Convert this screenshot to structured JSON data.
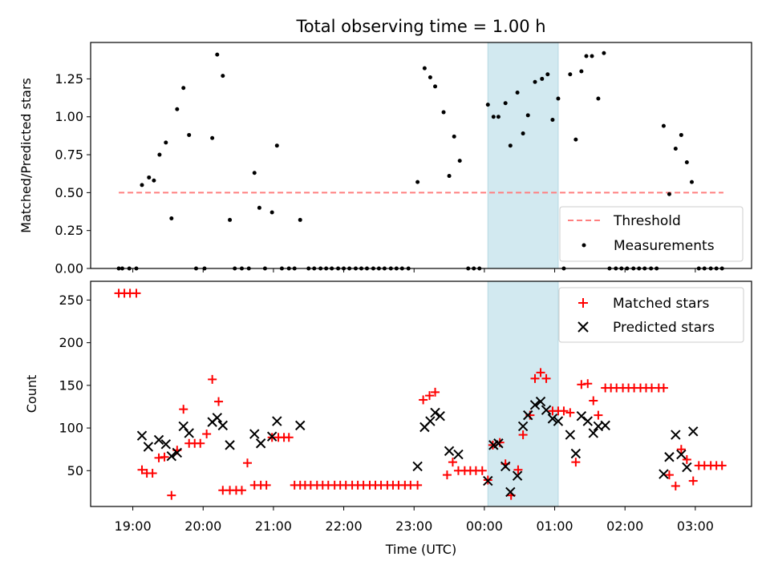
{
  "chart_data": [
    {
      "type": "scatter",
      "title": "Total observing time = 1.00 h",
      "xlabel": "",
      "ylabel": "Matched/Predicted stars",
      "x_tick_labels": [
        "19:00",
        "20:00",
        "21:00",
        "22:00",
        "23:00",
        "00:00",
        "01:00",
        "02:00",
        "03:00"
      ],
      "xlim_hours": [
        18.4,
        27.8
      ],
      "ylim": [
        0,
        1.49
      ],
      "y_ticks": [
        0.0,
        0.25,
        0.5,
        0.75,
        1.0,
        1.25
      ],
      "y_tick_labels": [
        "0.00",
        "0.25",
        "0.50",
        "0.75",
        "1.00",
        "1.25"
      ],
      "highlight_span_hours": [
        24.05,
        25.05
      ],
      "highlight_color": "#d2e9f0",
      "grid": false,
      "legend": {
        "position": "lower-right",
        "entries": [
          "Threshold",
          "Measurements"
        ]
      },
      "threshold": {
        "name": "Threshold",
        "value": 0.5,
        "x_range_hours": [
          18.8,
          27.4
        ],
        "color": "#ff7f7f",
        "style": "dashed"
      },
      "series": [
        {
          "name": "Measurements",
          "marker": "dot",
          "color": "#000000",
          "x_hours": [
            18.8,
            18.85,
            18.95,
            19.05,
            19.13,
            19.23,
            19.3,
            19.38,
            19.47,
            19.55,
            19.63,
            19.72,
            19.8,
            19.9,
            20.02,
            20.13,
            20.2,
            20.28,
            20.38,
            20.45,
            20.55,
            20.65,
            20.73,
            20.8,
            20.88,
            20.98,
            21.05,
            21.12,
            21.22,
            21.3,
            21.38,
            21.5,
            21.58,
            21.67,
            21.75,
            21.83,
            21.92,
            22.0,
            22.08,
            22.17,
            22.25,
            22.33,
            22.42,
            22.5,
            22.58,
            22.67,
            22.75,
            22.83,
            22.92,
            23.05,
            23.15,
            23.23,
            23.3,
            23.42,
            23.5,
            23.57,
            23.65,
            23.77,
            23.85,
            23.93,
            24.05,
            24.13,
            24.2,
            24.3,
            24.37,
            24.47,
            24.55,
            24.62,
            24.72,
            24.82,
            24.9,
            24.97,
            25.05,
            25.13,
            25.22,
            25.3,
            25.38,
            25.45,
            25.53,
            25.62,
            25.7,
            25.78,
            25.87,
            25.95,
            26.03,
            26.12,
            26.2,
            26.28,
            26.37,
            26.45,
            26.55,
            26.63,
            26.72,
            26.8,
            26.88,
            26.95,
            27.05,
            27.13,
            27.22,
            27.3,
            27.38
          ],
          "y": [
            0,
            0,
            0,
            0,
            0.55,
            0.6,
            0.58,
            0.75,
            0.83,
            0.33,
            1.05,
            1.19,
            0.88,
            0,
            0,
            0.86,
            1.41,
            1.27,
            0.32,
            0,
            0,
            0,
            0.63,
            0.4,
            0,
            0.37,
            0.81,
            0,
            0,
            0,
            0.32,
            0,
            0,
            0,
            0,
            0,
            0,
            0,
            0,
            0,
            0,
            0,
            0,
            0,
            0,
            0,
            0,
            0,
            0,
            0.57,
            1.32,
            1.26,
            1.2,
            1.03,
            0.61,
            0.87,
            0.71,
            0,
            0,
            0,
            1.08,
            1.0,
            1.0,
            1.09,
            0.81,
            1.16,
            0.89,
            1.01,
            1.23,
            1.25,
            1.28,
            0.98,
            1.12,
            0,
            1.28,
            0.85,
            1.3,
            1.4,
            1.4,
            1.12,
            1.42,
            0,
            0,
            0,
            0,
            0,
            0,
            0,
            0,
            0,
            0.94,
            0.49,
            0.79,
            0.88,
            0.7,
            0.57,
            0,
            0,
            0,
            0,
            0
          ]
        }
      ]
    },
    {
      "type": "scatter",
      "title": "",
      "xlabel": "Time (UTC)",
      "ylabel": "Count",
      "x_tick_labels": [
        "19:00",
        "20:00",
        "21:00",
        "22:00",
        "23:00",
        "00:00",
        "01:00",
        "02:00",
        "03:00"
      ],
      "xlim_hours": [
        18.4,
        27.8
      ],
      "ylim": [
        8,
        272
      ],
      "y_ticks": [
        50,
        100,
        150,
        200,
        250
      ],
      "y_tick_labels": [
        "50",
        "100",
        "150",
        "200",
        "250"
      ],
      "highlight_span_hours": [
        24.05,
        25.05
      ],
      "grid": false,
      "legend": {
        "position": "upper-right",
        "entries": [
          "Matched stars",
          "Predicted stars"
        ]
      },
      "series": [
        {
          "name": "Matched stars",
          "marker": "plus",
          "color": "#ff0000",
          "x_hours": [
            18.8,
            18.88,
            18.96,
            19.05,
            19.13,
            19.2,
            19.28,
            19.37,
            19.45,
            19.55,
            19.63,
            19.72,
            19.8,
            19.88,
            19.96,
            20.05,
            20.13,
            20.22,
            20.28,
            20.38,
            20.47,
            20.55,
            20.63,
            20.73,
            20.82,
            20.9,
            20.98,
            21.07,
            21.15,
            21.22,
            21.3,
            21.38,
            21.45,
            21.53,
            21.62,
            21.7,
            21.78,
            21.87,
            21.95,
            22.03,
            22.12,
            22.2,
            22.28,
            22.37,
            22.45,
            22.53,
            22.62,
            22.7,
            22.78,
            22.87,
            22.95,
            23.05,
            23.13,
            23.22,
            23.3,
            23.47,
            23.55,
            23.63,
            23.72,
            23.8,
            23.88,
            23.97,
            24.05,
            24.12,
            24.22,
            24.3,
            24.38,
            24.48,
            24.55,
            24.65,
            24.72,
            24.8,
            24.88,
            24.97,
            25.05,
            25.13,
            25.22,
            25.3,
            25.38,
            25.47,
            25.55,
            25.62,
            25.72,
            25.8,
            25.88,
            25.97,
            26.05,
            26.13,
            26.22,
            26.3,
            26.38,
            26.48,
            26.55,
            26.63,
            26.72,
            26.8,
            26.88,
            26.97,
            27.05,
            27.13,
            27.22,
            27.3,
            27.38
          ],
          "y": [
            258,
            258,
            258,
            258,
            51,
            47,
            47,
            65,
            66,
            21,
            74,
            122,
            82,
            82,
            82,
            93,
            157,
            131,
            27,
            27,
            27,
            27,
            59,
            33,
            33,
            33,
            89,
            89,
            89,
            89,
            33,
            33,
            33,
            33,
            33,
            33,
            33,
            33,
            33,
            33,
            33,
            33,
            33,
            33,
            33,
            33,
            33,
            33,
            33,
            33,
            33,
            33,
            133,
            138,
            142,
            45,
            60,
            50,
            50,
            50,
            50,
            50,
            39,
            80,
            83,
            58,
            21,
            51,
            92,
            115,
            158,
            165,
            158,
            120,
            120,
            120,
            118,
            60,
            151,
            152,
            132,
            115,
            147,
            147,
            147,
            147,
            147,
            147,
            147,
            147,
            147,
            147,
            147,
            45,
            32,
            75,
            63,
            38,
            56,
            56,
            56,
            56,
            56
          ]
        },
        {
          "name": "Predicted stars",
          "marker": "x",
          "color": "#000000",
          "x_hours": [
            19.13,
            19.22,
            19.37,
            19.47,
            19.55,
            19.63,
            19.72,
            19.8,
            20.13,
            20.2,
            20.28,
            20.38,
            20.73,
            20.82,
            20.98,
            21.05,
            21.38,
            23.05,
            23.15,
            23.23,
            23.3,
            23.37,
            23.5,
            23.63,
            24.05,
            24.13,
            24.2,
            24.3,
            24.37,
            24.47,
            24.55,
            24.62,
            24.72,
            24.8,
            24.88,
            24.97,
            25.05,
            25.22,
            25.3,
            25.38,
            25.47,
            25.55,
            25.62,
            25.72,
            26.55,
            26.63,
            26.72,
            26.8,
            26.88,
            26.97
          ],
          "y": [
            91,
            78,
            86,
            81,
            67,
            71,
            102,
            94,
            107,
            112,
            103,
            80,
            93,
            82,
            90,
            108,
            103,
            55,
            101,
            108,
            118,
            114,
            73,
            69,
            38,
            80,
            82,
            55,
            25,
            44,
            102,
            115,
            127,
            131,
            121,
            111,
            108,
            92,
            70,
            114,
            108,
            94,
            102,
            103,
            46,
            66,
            92,
            69,
            54,
            96
          ]
        }
      ]
    }
  ]
}
